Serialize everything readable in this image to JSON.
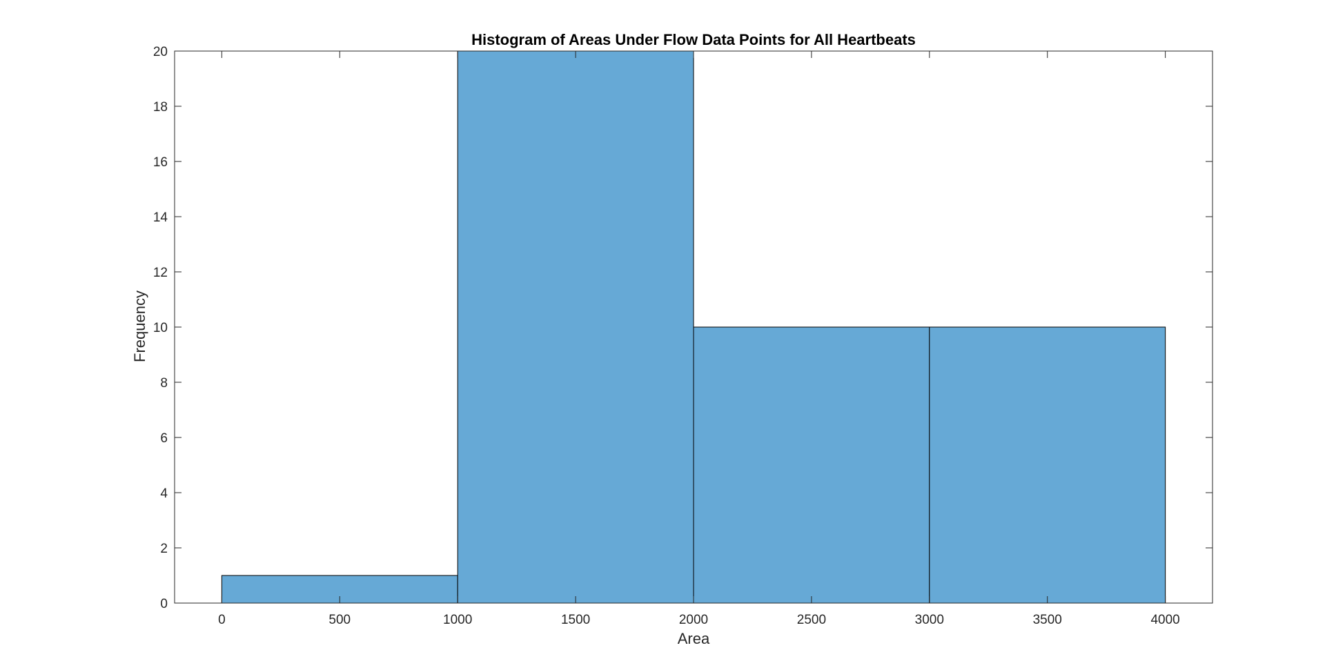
{
  "chart_data": {
    "type": "bar",
    "title": "Histogram of Areas Under Flow Data Points for All Heartbeats",
    "xlabel": "Area",
    "ylabel": "Frequency",
    "bin_edges": [
      0,
      1000,
      2000,
      3000,
      4000
    ],
    "values": [
      1,
      20,
      10,
      10
    ],
    "xlim": [
      -200,
      4200
    ],
    "ylim": [
      0,
      20
    ],
    "xticks": [
      0,
      500,
      1000,
      1500,
      2000,
      2500,
      3000,
      3500,
      4000
    ],
    "yticks": [
      0,
      2,
      4,
      6,
      8,
      10,
      12,
      14,
      16,
      18,
      20
    ],
    "bar_color": "#66A9D6",
    "bar_edge_color": "#000000",
    "grid": false,
    "legend": "none"
  }
}
